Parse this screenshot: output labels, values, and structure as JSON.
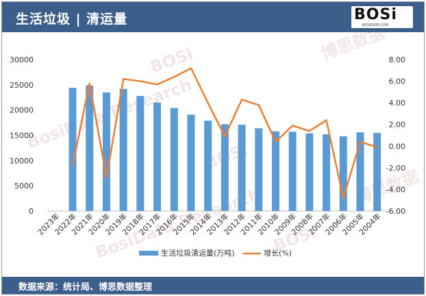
{
  "header": {
    "title": "生活垃圾 | 清运量"
  },
  "logo": {
    "text": "BOSi",
    "sub": "BOSIDATA.COM"
  },
  "footer": {
    "source": "数据来源：统计局、博思数据整理"
  },
  "colors": {
    "bar": "#5b9bd5",
    "line": "#ed7d31",
    "header_bg": "#3b5f8a"
  },
  "chart_data": {
    "type": "bar",
    "categories": [
      "2023年",
      "2022年",
      "2021年",
      "2020年",
      "2019年",
      "2018年",
      "2017年",
      "2016年",
      "2015年",
      "2014年",
      "2013年",
      "2012年",
      "2011年",
      "2010年",
      "2009年",
      "2008年",
      "2007年",
      "2006年",
      "2005年",
      "2004年"
    ],
    "series": [
      {
        "name": "生活垃圾清运量(万吨)",
        "type": "bar",
        "axis": "left",
        "values": [
          null,
          24400,
          24900,
          23500,
          24200,
          22800,
          21500,
          20400,
          19100,
          17900,
          17200,
          17100,
          16400,
          15800,
          15700,
          15400,
          15200,
          14800,
          15600,
          15500
        ]
      },
      {
        "name": "增长(%)",
        "type": "line",
        "axis": "right",
        "values": [
          null,
          -1.8,
          5.8,
          -2.9,
          6.2,
          6.0,
          5.7,
          6.4,
          7.2,
          4.0,
          0.9,
          4.3,
          3.8,
          0.4,
          1.9,
          1.4,
          2.4,
          -4.8,
          0.4,
          -0.1
        ]
      }
    ],
    "y_left": {
      "min": 0,
      "max": 30000,
      "ticks": [
        "0",
        "5000",
        "10000",
        "15000",
        "20000",
        "25000",
        "30000"
      ]
    },
    "y_right": {
      "min": -6,
      "max": 8,
      "ticks": [
        "-6.00",
        "-4.00",
        "-2.00",
        "0.00",
        "2.00",
        "4.00",
        "6.00",
        "8.00"
      ]
    },
    "legend": {
      "position": "bottom"
    },
    "grid": false
  },
  "watermarks": [
    "BOSi",
    "博思数据",
    "BosiData Research"
  ]
}
